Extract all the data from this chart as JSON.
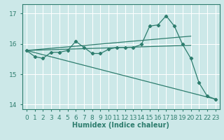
{
  "xlabel": "Humidex (Indice chaleur)",
  "background_color": "#cce8e8",
  "grid_color": "#ffffff",
  "line_color": "#2e7d6e",
  "xlim": [
    -0.5,
    23.5
  ],
  "ylim": [
    13.85,
    17.3
  ],
  "yticks": [
    14,
    15,
    16,
    17
  ],
  "xticks": [
    0,
    1,
    2,
    3,
    4,
    5,
    6,
    7,
    8,
    9,
    10,
    11,
    12,
    13,
    14,
    15,
    16,
    17,
    18,
    19,
    20,
    21,
    22,
    23
  ],
  "main_x": [
    0,
    1,
    2,
    3,
    4,
    5,
    6,
    7,
    8,
    9,
    10,
    11,
    12,
    13,
    14,
    15,
    16,
    17,
    18,
    19,
    20,
    21,
    22,
    23
  ],
  "main_y": [
    15.78,
    15.58,
    15.52,
    15.72,
    15.72,
    15.78,
    16.08,
    15.88,
    15.68,
    15.68,
    15.82,
    15.88,
    15.88,
    15.88,
    15.98,
    16.58,
    16.62,
    16.92,
    16.58,
    15.98,
    15.52,
    14.72,
    14.28,
    14.18
  ],
  "line1_x": [
    0,
    20
  ],
  "line1_y": [
    15.78,
    16.25
  ],
  "line2_x": [
    0,
    20
  ],
  "line2_y": [
    15.78,
    15.95
  ],
  "line3_x": [
    0,
    23
  ],
  "line3_y": [
    15.78,
    14.18
  ]
}
